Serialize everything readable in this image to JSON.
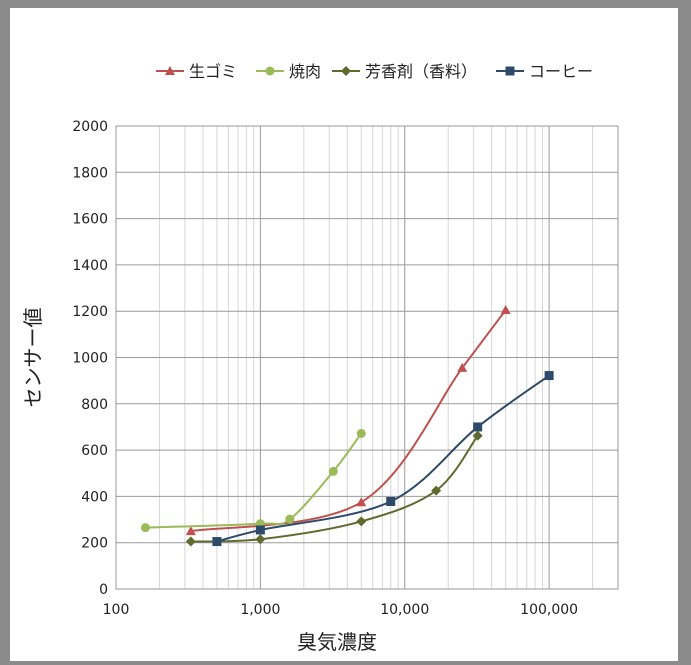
{
  "chart_data": {
    "type": "line",
    "title": "",
    "xlabel": "臭気濃度",
    "ylabel": "センサー値",
    "x_scale": "log",
    "xlim": [
      100,
      300000
    ],
    "ylim": [
      0,
      2000
    ],
    "x_ticks": [
      100,
      1000,
      10000,
      100000
    ],
    "x_tick_labels": [
      "100",
      "1,000",
      "10,000",
      "100,000"
    ],
    "y_ticks": [
      0,
      200,
      400,
      600,
      800,
      1000,
      1200,
      1400,
      1600,
      1800,
      2000
    ],
    "y_tick_labels": [
      "0",
      "200",
      "400",
      "600",
      "800",
      "1000",
      "1200",
      "1400",
      "1600",
      "1800",
      "2000"
    ],
    "grid": true,
    "legend_position": "top",
    "series": [
      {
        "name": "生ゴミ",
        "color": "#c0504d",
        "marker": "triangle",
        "x": [
          330,
          5000,
          25000,
          50000
        ],
        "y": [
          250,
          375,
          955,
          1205
        ]
      },
      {
        "name": "焼肉",
        "color": "#9bbb59",
        "marker": "circle",
        "x": [
          160,
          1000,
          1600,
          3200,
          5000
        ],
        "y": [
          265,
          282,
          302,
          508,
          672
        ]
      },
      {
        "name": "芳香剤（香料）",
        "color": "#5f6b2e",
        "marker": "diamond",
        "x": [
          330,
          1000,
          5000,
          16500,
          32000
        ],
        "y": [
          205,
          215,
          292,
          425,
          662
        ]
      },
      {
        "name": "コーヒー",
        "color": "#2e4a6b",
        "marker": "square",
        "x": [
          500,
          1000,
          8000,
          32000,
          100000
        ],
        "y": [
          205,
          255,
          378,
          700,
          922
        ]
      }
    ]
  }
}
